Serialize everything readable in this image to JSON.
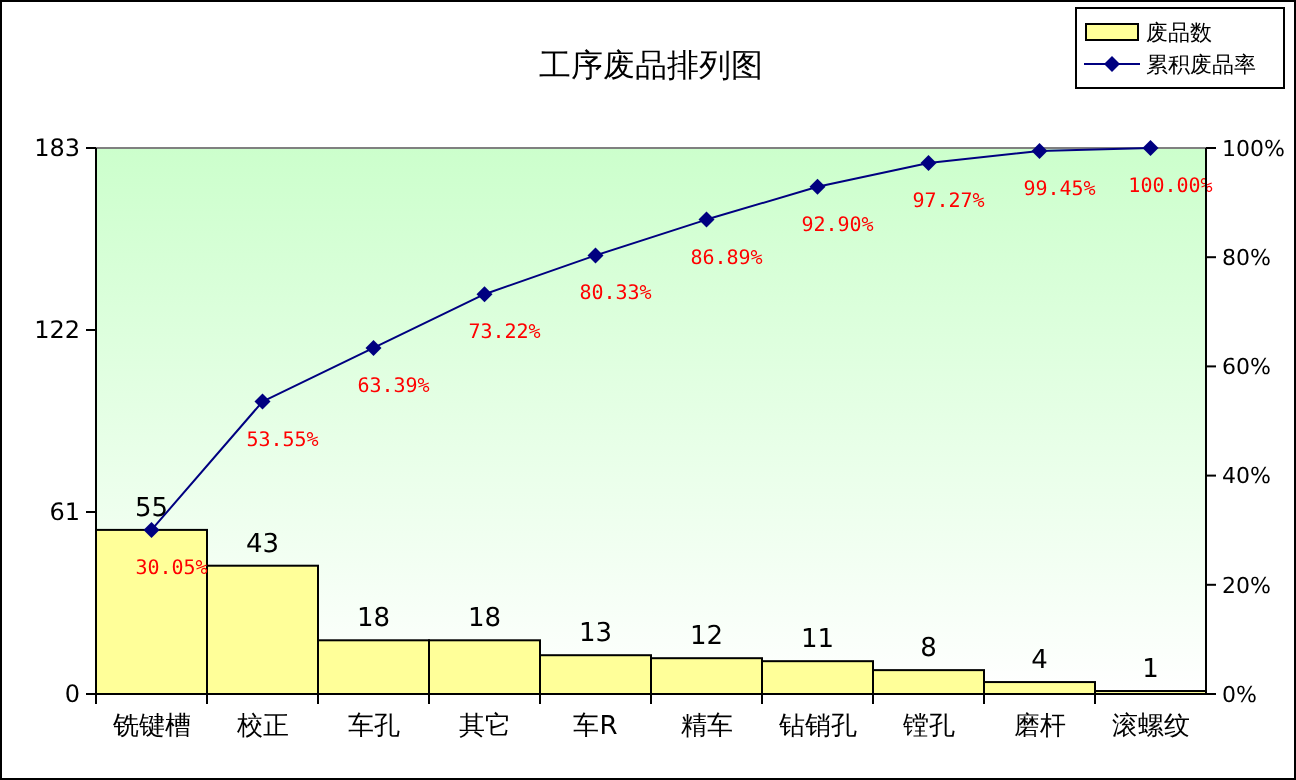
{
  "chart_data": {
    "type": "bar",
    "title": "工序废品排列图",
    "categories": [
      "铣键槽",
      "校正",
      "车孔",
      "其它",
      "车R",
      "精车",
      "钻销孔",
      "镗孔",
      "磨杆",
      "滚螺纹"
    ],
    "series": [
      {
        "name": "废品数",
        "color": "#ffff99",
        "values": [
          55,
          43,
          18,
          18,
          13,
          12,
          11,
          8,
          4,
          1
        ],
        "value_labels": [
          "55",
          "43",
          "18",
          "18",
          "13",
          "12",
          "11",
          "8",
          "4",
          "1"
        ]
      },
      {
        "name": "累积废品率",
        "type": "line",
        "axis": "y2",
        "color": "#000080",
        "values": [
          30.05,
          53.55,
          63.39,
          73.22,
          80.33,
          86.89,
          92.9,
          97.27,
          99.45,
          100
        ],
        "value_labels": [
          "30.05%",
          "53.55%",
          "63.39%",
          "73.22%",
          "80.33%",
          "86.89%",
          "92.90%",
          "97.27%",
          "99.45%",
          "100.00%"
        ]
      }
    ],
    "ylim": [
      0,
      183
    ],
    "yticks": [
      0,
      61,
      122,
      183
    ],
    "y2lim": [
      0,
      100
    ],
    "y2ticks": [
      {
        "value": 0,
        "label": "0%"
      },
      {
        "value": 20,
        "label": "20%"
      },
      {
        "value": 40,
        "label": "40%"
      },
      {
        "value": 60,
        "label": "60%"
      },
      {
        "value": 80,
        "label": "80%"
      },
      {
        "value": 100,
        "label": "100%"
      }
    ],
    "marker": "diamond",
    "legend": "top right",
    "grid": false
  }
}
